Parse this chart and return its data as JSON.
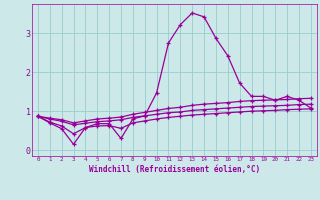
{
  "xlabel": "Windchill (Refroidissement éolien,°C)",
  "bg_color": "#cce8e8",
  "line_color": "#990099",
  "grid_color": "#99cccc",
  "xlim": [
    -0.5,
    23.5
  ],
  "ylim": [
    -0.15,
    3.75
  ],
  "xticks": [
    0,
    1,
    2,
    3,
    4,
    5,
    6,
    7,
    8,
    9,
    10,
    11,
    12,
    13,
    14,
    15,
    16,
    17,
    18,
    19,
    20,
    21,
    22,
    23
  ],
  "yticks": [
    0,
    1,
    2,
    3
  ],
  "series": [
    [
      0.87,
      0.7,
      0.55,
      0.15,
      0.58,
      0.68,
      0.68,
      0.3,
      0.8,
      0.88,
      1.47,
      2.75,
      3.22,
      3.52,
      3.42,
      2.87,
      2.42,
      1.72,
      1.38,
      1.38,
      1.28,
      1.38,
      1.28,
      1.08
    ],
    [
      0.87,
      0.82,
      0.78,
      0.7,
      0.75,
      0.8,
      0.82,
      0.85,
      0.92,
      0.97,
      1.02,
      1.07,
      1.1,
      1.15,
      1.18,
      1.2,
      1.22,
      1.25,
      1.27,
      1.28,
      1.29,
      1.3,
      1.32,
      1.33
    ],
    [
      0.87,
      0.8,
      0.74,
      0.65,
      0.69,
      0.73,
      0.75,
      0.78,
      0.84,
      0.88,
      0.92,
      0.96,
      0.98,
      1.02,
      1.04,
      1.06,
      1.08,
      1.1,
      1.12,
      1.13,
      1.14,
      1.15,
      1.17,
      1.18
    ],
    [
      0.87,
      0.72,
      0.62,
      0.42,
      0.58,
      0.62,
      0.63,
      0.56,
      0.7,
      0.75,
      0.8,
      0.84,
      0.87,
      0.9,
      0.92,
      0.94,
      0.96,
      0.98,
      1.0,
      1.01,
      1.02,
      1.04,
      1.05,
      1.06
    ]
  ]
}
